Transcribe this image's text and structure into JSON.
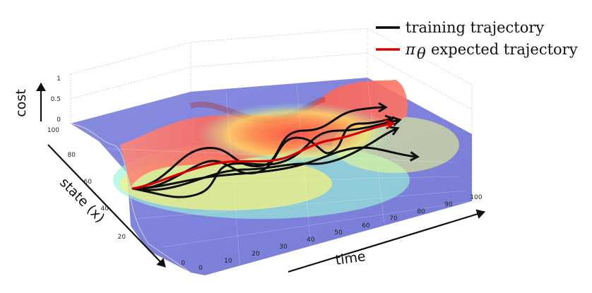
{
  "legend": {
    "items": [
      {
        "label": "training trajectory",
        "color": "#000000"
      },
      {
        "label": "expected trajectory",
        "prefix_symbol": "π",
        "prefix_subscript": "θ",
        "color": "#d40000"
      }
    ]
  },
  "axes": {
    "z_label": "cost",
    "y_label": "state (x)",
    "x_label": "time",
    "z_ticks": [
      "1",
      "0.5",
      "0"
    ],
    "y_ticks": [
      "100",
      "80",
      "60",
      "40",
      "20",
      "0"
    ],
    "x_ticks": [
      "0",
      "10",
      "20",
      "30",
      "40",
      "50",
      "60",
      "70",
      "80",
      "90",
      "100"
    ]
  },
  "colors": {
    "low_cost": "#6f72d6",
    "high_cost": "#ff5b4e",
    "mid_cost": "#fff36b",
    "training": "#000000",
    "expected": "#d40000"
  }
}
